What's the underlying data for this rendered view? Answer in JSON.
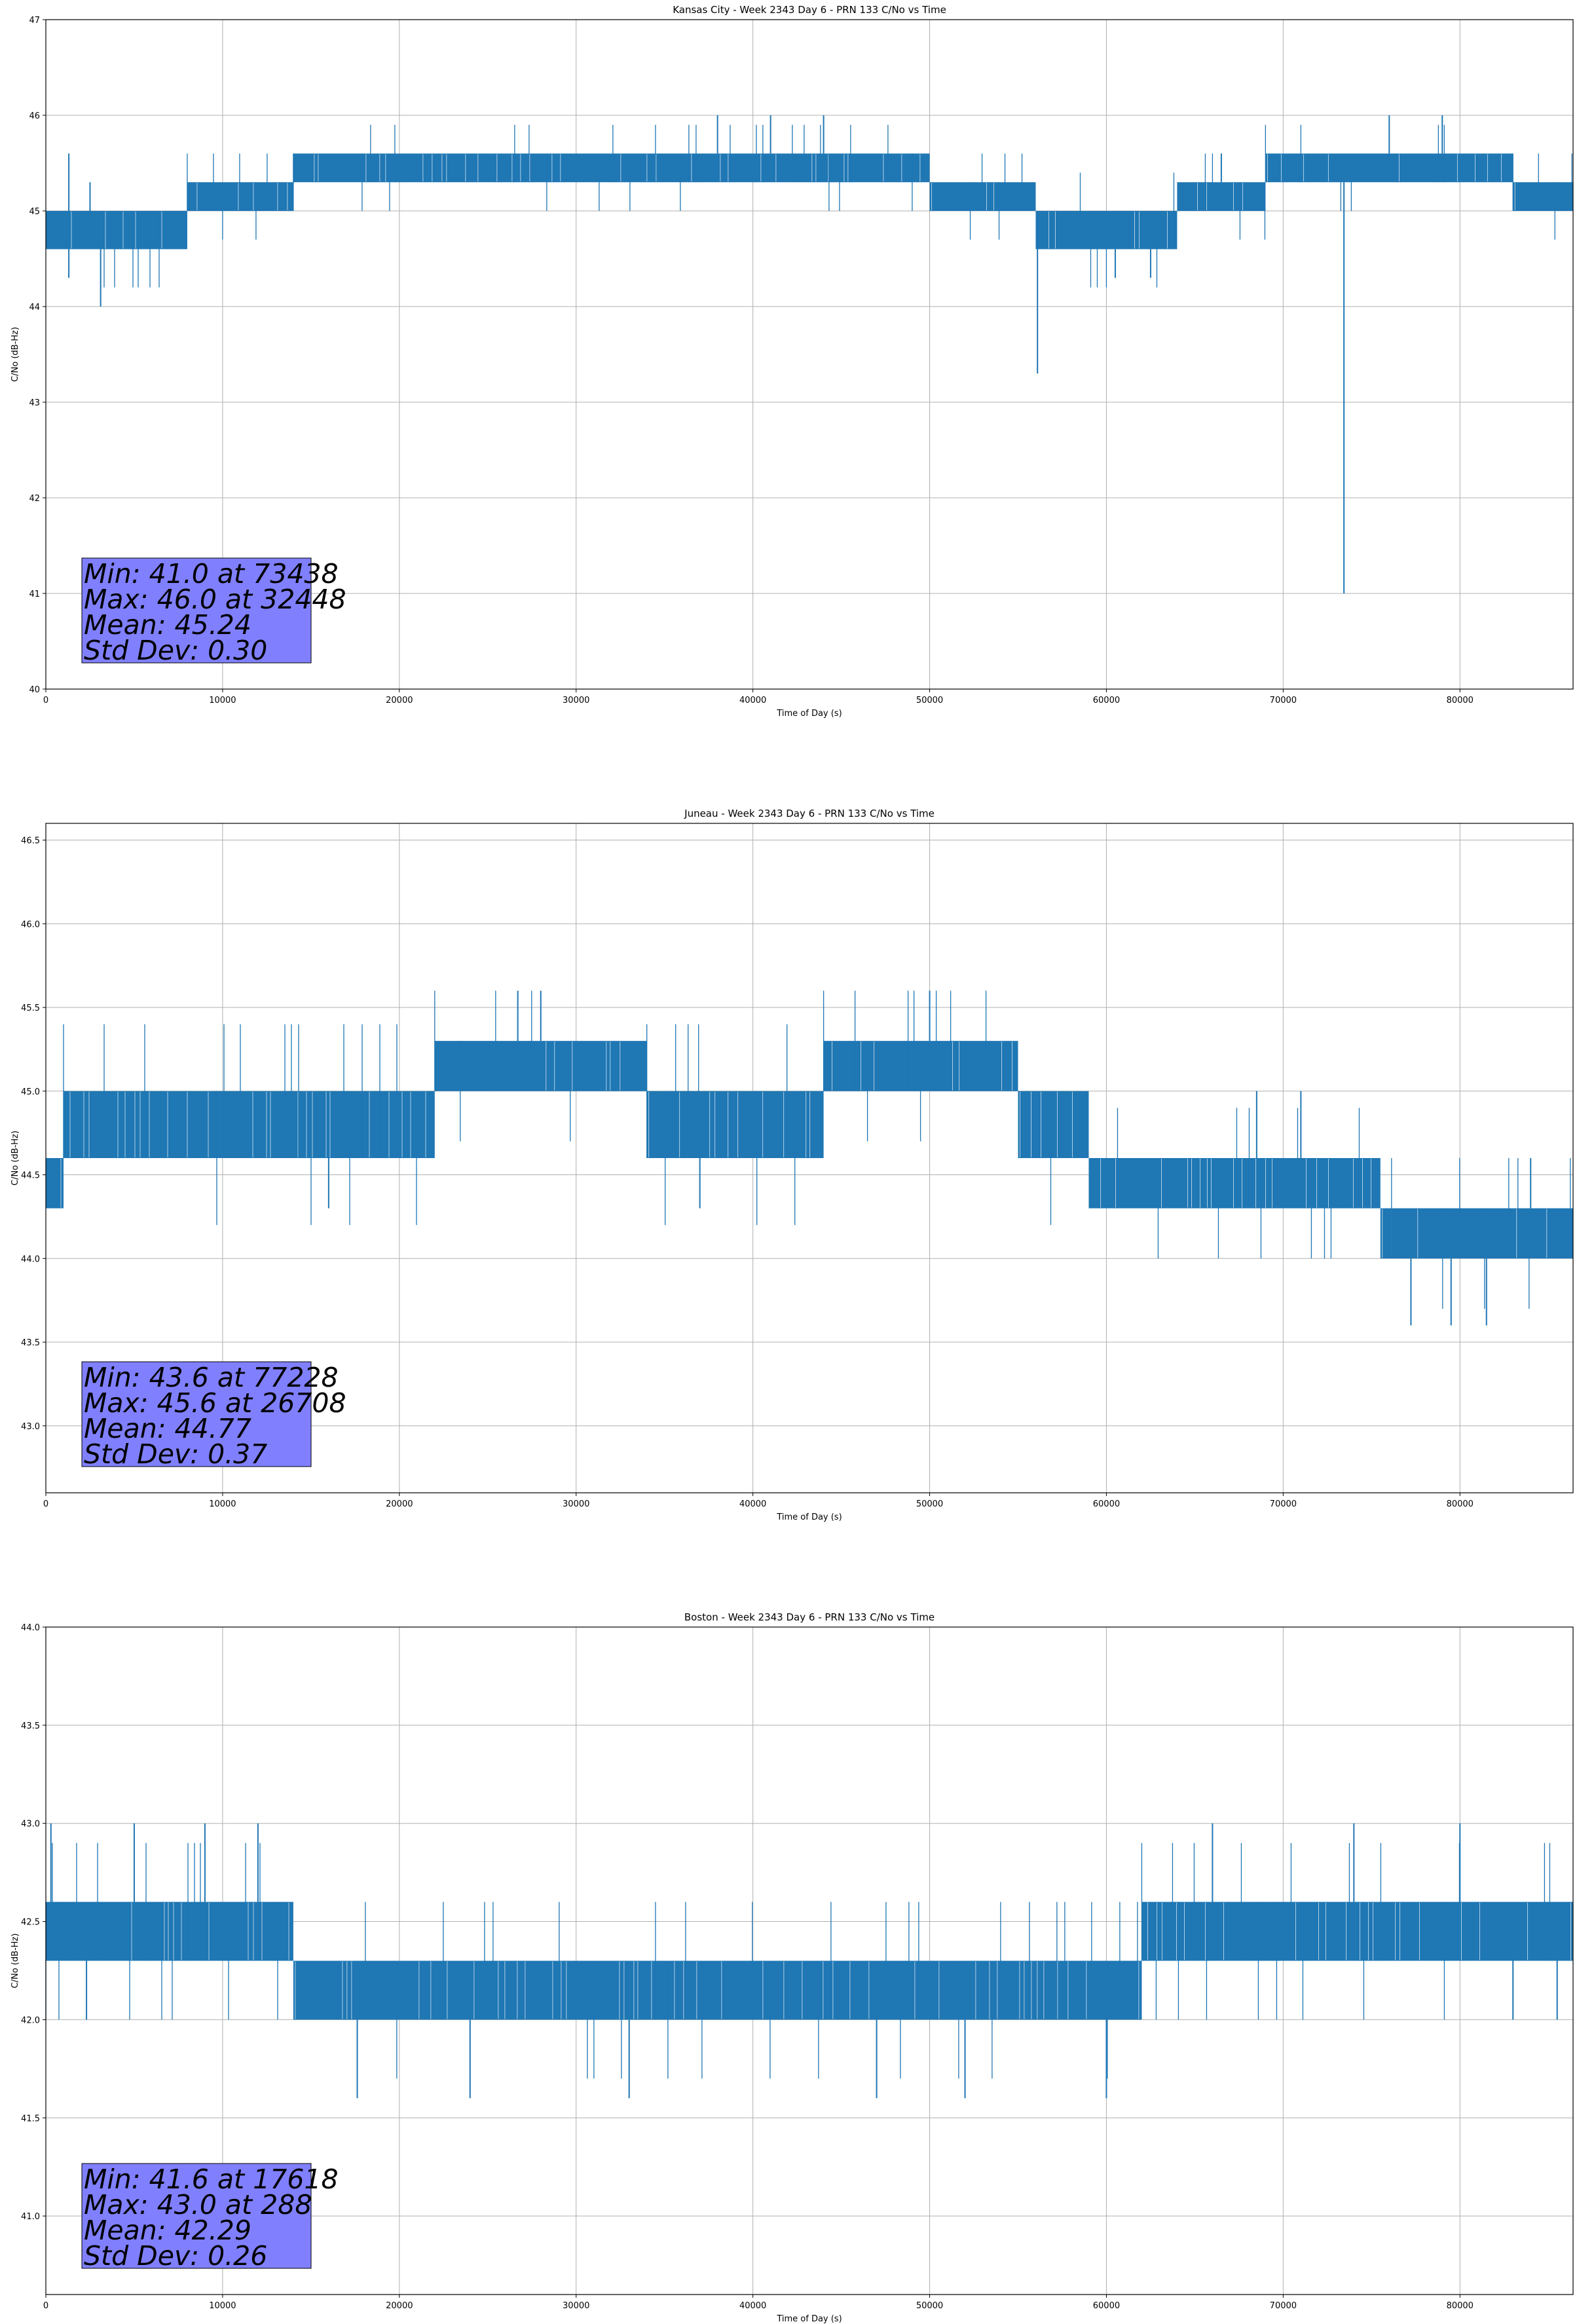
{
  "series_color": "#1f77b4",
  "stats_box_color": "#8080ff",
  "chart_data": [
    {
      "type": "line",
      "title": "Kansas City - Week 2343 Day 6 - PRN 133 C/No vs Time",
      "xlabel": "Time of Day (s)",
      "ylabel": "C/No (dB-Hz)",
      "xlim": [
        0,
        86400
      ],
      "ylim": [
        40,
        47
      ],
      "xticks": [
        0,
        10000,
        20000,
        30000,
        40000,
        50000,
        60000,
        70000,
        80000
      ],
      "yticks": [
        40,
        41,
        42,
        43,
        44,
        45,
        46,
        47
      ],
      "ytick_labels": [
        "40",
        "41",
        "42",
        "43",
        "44",
        "45",
        "46",
        "47"
      ],
      "grid": true,
      "bands": [
        {
          "x0": 0,
          "x1": 8000,
          "y0": 44.6,
          "y1": 45.0
        },
        {
          "x0": 8000,
          "x1": 10000,
          "y0": 45.0,
          "y1": 45.3
        },
        {
          "x0": 10000,
          "x1": 14000,
          "y0": 45.0,
          "y1": 45.3
        },
        {
          "x0": 14000,
          "x1": 50000,
          "y0": 45.3,
          "y1": 45.6
        },
        {
          "x0": 50000,
          "x1": 56000,
          "y0": 45.0,
          "y1": 45.3
        },
        {
          "x0": 56000,
          "x1": 60000,
          "y0": 44.6,
          "y1": 45.0
        },
        {
          "x0": 60000,
          "x1": 64000,
          "y0": 44.6,
          "y1": 45.0
        },
        {
          "x0": 64000,
          "x1": 69000,
          "y0": 45.0,
          "y1": 45.3
        },
        {
          "x0": 69000,
          "x1": 83000,
          "y0": 45.3,
          "y1": 45.6
        },
        {
          "x0": 83000,
          "x1": 86400,
          "y0": 45.0,
          "y1": 45.3
        }
      ],
      "spikes": [
        {
          "x": 3100,
          "y": 44.0
        },
        {
          "x": 1300,
          "y": 44.3
        },
        {
          "x": 2500,
          "y": 45.3
        },
        {
          "x": 1300,
          "y": 45.6
        },
        {
          "x": 38000,
          "y": 46.0
        },
        {
          "x": 41000,
          "y": 46.0
        },
        {
          "x": 44000,
          "y": 46.0
        },
        {
          "x": 49000,
          "y": 45.6
        },
        {
          "x": 56100,
          "y": 43.3
        },
        {
          "x": 60500,
          "y": 44.3
        },
        {
          "x": 62500,
          "y": 44.3
        },
        {
          "x": 73438,
          "y": 41.0
        },
        {
          "x": 76000,
          "y": 46.0
        },
        {
          "x": 79000,
          "y": 46.0
        },
        {
          "x": 66500,
          "y": 45.6
        }
      ],
      "stats": {
        "min": "Min: 41.0 at 73438",
        "max": "Max: 46.0 at 32448",
        "mean": "Mean: 45.24",
        "std": "Std Dev: 0.30"
      }
    },
    {
      "type": "line",
      "title": "Juneau - Week 2343 Day 6 - PRN 133 C/No vs Time",
      "xlabel": "Time of Day (s)",
      "ylabel": "C/No (dB-Hz)",
      "xlim": [
        0,
        86400
      ],
      "ylim": [
        42.6,
        46.6
      ],
      "xticks": [
        0,
        10000,
        20000,
        30000,
        40000,
        50000,
        60000,
        70000,
        80000
      ],
      "yticks": [
        43.0,
        43.5,
        44.0,
        44.5,
        45.0,
        45.5,
        46.0,
        46.5
      ],
      "ytick_labels": [
        "43.0",
        "43.5",
        "44.0",
        "44.5",
        "45.0",
        "45.5",
        "46.0",
        "46.5"
      ],
      "grid": true,
      "bands": [
        {
          "x0": 0,
          "x1": 1000,
          "y0": 44.3,
          "y1": 44.6
        },
        {
          "x0": 1000,
          "x1": 22000,
          "y0": 44.6,
          "y1": 45.0
        },
        {
          "x0": 22000,
          "x1": 34000,
          "y0": 45.0,
          "y1": 45.3
        },
        {
          "x0": 34000,
          "x1": 44000,
          "y0": 44.6,
          "y1": 45.0
        },
        {
          "x0": 44000,
          "x1": 55000,
          "y0": 45.0,
          "y1": 45.3
        },
        {
          "x0": 55000,
          "x1": 59000,
          "y0": 44.6,
          "y1": 45.0
        },
        {
          "x0": 59000,
          "x1": 75500,
          "y0": 44.3,
          "y1": 44.6
        },
        {
          "x0": 75500,
          "x1": 86400,
          "y0": 44.0,
          "y1": 44.3
        }
      ],
      "spikes": [
        {
          "x": 16000,
          "y": 44.3
        },
        {
          "x": 26700,
          "y": 45.6
        },
        {
          "x": 28000,
          "y": 45.6
        },
        {
          "x": 37000,
          "y": 44.3
        },
        {
          "x": 50000,
          "y": 45.6
        },
        {
          "x": 68500,
          "y": 45.0
        },
        {
          "x": 71000,
          "y": 45.0
        },
        {
          "x": 77228,
          "y": 43.6
        },
        {
          "x": 79500,
          "y": 43.6
        },
        {
          "x": 81500,
          "y": 43.6
        },
        {
          "x": 84000,
          "y": 44.6
        }
      ],
      "stats": {
        "min": "Min: 43.6 at 77228",
        "max": "Max: 45.6 at 26708",
        "mean": "Mean: 44.77",
        "std": "Std Dev: 0.37"
      }
    },
    {
      "type": "line",
      "title": "Boston - Week 2343 Day 6 - PRN 133 C/No vs Time",
      "xlabel": "Time of Day (s)",
      "ylabel": "C/No (dB-Hz)",
      "xlim": [
        0,
        86400
      ],
      "ylim": [
        40.6,
        44.0
      ],
      "xticks": [
        0,
        10000,
        20000,
        30000,
        40000,
        50000,
        60000,
        70000,
        80000
      ],
      "yticks": [
        41.0,
        41.5,
        42.0,
        42.5,
        43.0,
        43.5,
        44.0
      ],
      "ytick_labels": [
        "41.0",
        "41.5",
        "42.0",
        "42.5",
        "43.0",
        "43.5",
        "44.0"
      ],
      "grid": true,
      "bands": [
        {
          "x0": 0,
          "x1": 14000,
          "y0": 42.3,
          "y1": 42.6
        },
        {
          "x0": 14000,
          "x1": 62000,
          "y0": 42.0,
          "y1": 42.3
        },
        {
          "x0": 62000,
          "x1": 86400,
          "y0": 42.3,
          "y1": 42.6
        }
      ],
      "spikes": [
        {
          "x": 288,
          "y": 43.0
        },
        {
          "x": 2300,
          "y": 42.0
        },
        {
          "x": 5000,
          "y": 43.0
        },
        {
          "x": 9000,
          "y": 43.0
        },
        {
          "x": 12000,
          "y": 43.0
        },
        {
          "x": 17618,
          "y": 41.6
        },
        {
          "x": 24000,
          "y": 41.6
        },
        {
          "x": 33000,
          "y": 41.6
        },
        {
          "x": 47000,
          "y": 41.6
        },
        {
          "x": 52000,
          "y": 41.6
        },
        {
          "x": 60000,
          "y": 41.6
        },
        {
          "x": 66000,
          "y": 43.0
        },
        {
          "x": 74000,
          "y": 43.0
        },
        {
          "x": 80000,
          "y": 43.0
        },
        {
          "x": 83000,
          "y": 42.0
        },
        {
          "x": 85500,
          "y": 42.0
        }
      ],
      "stats": {
        "min": "Min: 41.6 at 17618",
        "max": "Max: 43.0 at 288",
        "mean": "Mean: 42.29",
        "std": "Std Dev: 0.26"
      }
    }
  ]
}
